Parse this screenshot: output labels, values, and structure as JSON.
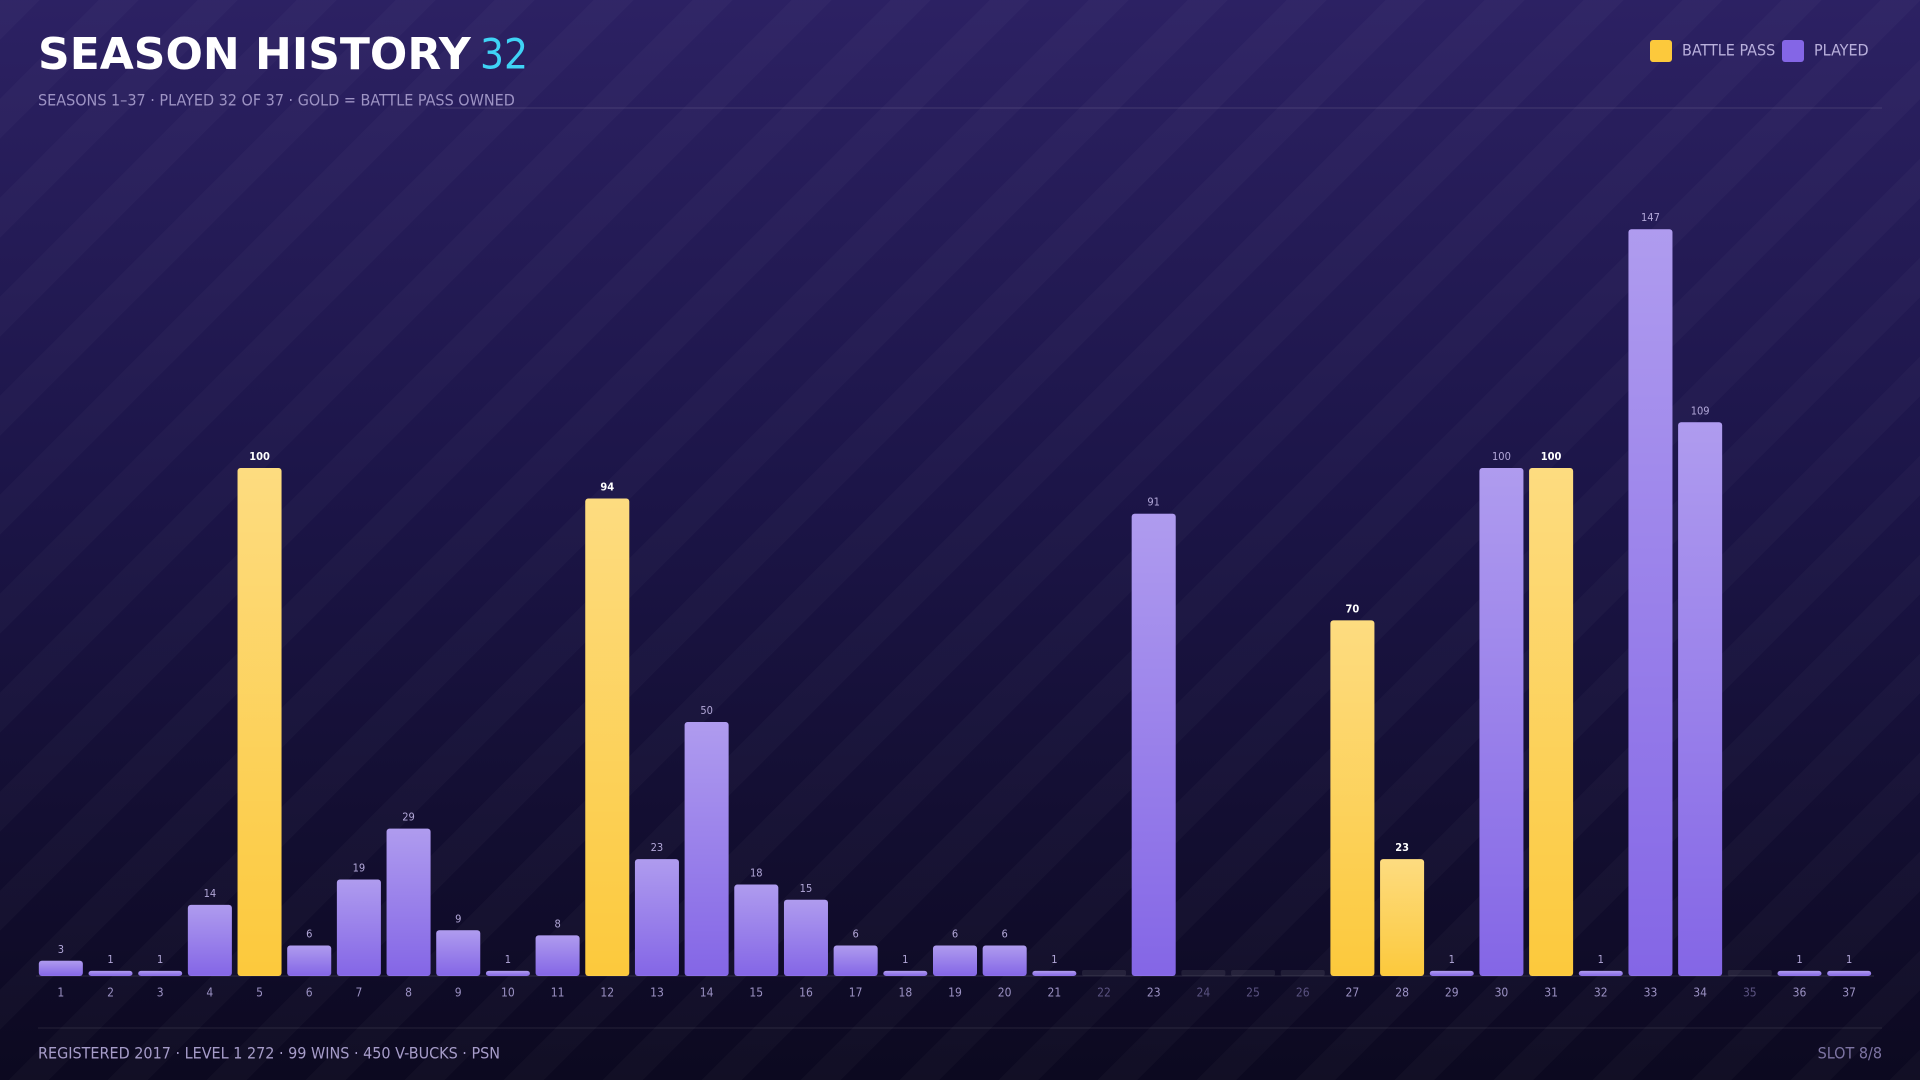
{
  "chart_data": {
    "type": "bar",
    "title": "SEASON HISTORY",
    "categories": [
      "1",
      "2",
      "3",
      "4",
      "5",
      "6",
      "7",
      "8",
      "9",
      "10",
      "11",
      "12",
      "13",
      "14",
      "15",
      "16",
      "17",
      "18",
      "19",
      "20",
      "21",
      "22",
      "23",
      "24",
      "25",
      "26",
      "27",
      "28",
      "29",
      "30",
      "31",
      "32",
      "33",
      "34",
      "35",
      "36",
      "37"
    ],
    "series": [
      {
        "name": "BATTLE PASS",
        "color": "#fcc93c",
        "values": [
          null,
          null,
          null,
          null,
          100,
          null,
          null,
          null,
          null,
          null,
          null,
          94,
          null,
          null,
          null,
          null,
          null,
          null,
          null,
          null,
          null,
          null,
          null,
          null,
          null,
          null,
          70,
          23,
          null,
          null,
          100,
          null,
          null,
          null,
          null,
          null,
          null
        ]
      },
      {
        "name": "PLAYED",
        "color": "#8466e6",
        "values": [
          3,
          1,
          1,
          14,
          null,
          6,
          19,
          29,
          9,
          1,
          8,
          null,
          23,
          50,
          18,
          15,
          6,
          1,
          6,
          6,
          1,
          null,
          91,
          null,
          null,
          null,
          null,
          null,
          1,
          100,
          null,
          1,
          147,
          109,
          null,
          1,
          1
        ]
      }
    ],
    "ylim": [
      0,
      150
    ],
    "legend": "top-right"
  },
  "header": {
    "count": "32",
    "subtitle": "SEASONS 1–37 · PLAYED 32 OF 37 · GOLD = BATTLE PASS OWNED"
  },
  "footer": {
    "stats": "REGISTERED 2017 · LEVEL 1 272 · 99 WINS · 450 V-BUCKS · PSN",
    "slot": "SLOT 8/8"
  }
}
